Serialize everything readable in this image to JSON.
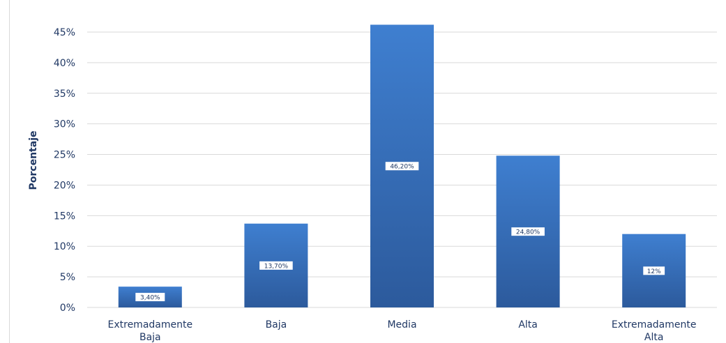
{
  "chart_data": {
    "type": "bar",
    "title": "",
    "xlabel": "",
    "ylabel": "Porcentaje",
    "ylim": [
      0,
      45
    ],
    "yticks": [
      "0%",
      "5%",
      "10%",
      "15%",
      "20%",
      "25%",
      "30%",
      "35%",
      "40%",
      "45%"
    ],
    "grid": true,
    "categories": [
      [
        "Extremadamente",
        "Baja"
      ],
      [
        "Baja"
      ],
      [
        "Media"
      ],
      [
        "Alta"
      ],
      [
        "Extremadamente",
        "Alta"
      ]
    ],
    "values": [
      3.4,
      13.7,
      46.2,
      24.8,
      12
    ],
    "data_labels": [
      "3,40%",
      "13,70%",
      "46,20%",
      "24,80%",
      "12%"
    ],
    "colors": {
      "bar_top": "#3f7fd0",
      "bar_bottom": "#2c5a9c",
      "grid": "#d9d9d9",
      "axis_text": "#203864"
    }
  }
}
